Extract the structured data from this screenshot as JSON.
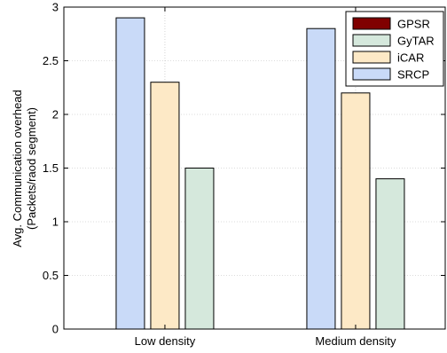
{
  "chart_data": {
    "type": "bar",
    "categories": [
      "Low density",
      "Medium density"
    ],
    "series": [
      {
        "name": "SRCP",
        "color": "#c9daf8",
        "values": [
          2.9,
          2.8
        ]
      },
      {
        "name": "iCAR",
        "color": "#fde9c6",
        "values": [
          2.3,
          2.2
        ]
      },
      {
        "name": "GyTAR",
        "color": "#d5e8dc",
        "values": [
          1.5,
          1.4
        ]
      },
      {
        "name": "GPSR",
        "color": "#800000",
        "values": [
          null,
          null
        ]
      }
    ],
    "legend_order": [
      "GPSR",
      "GyTAR",
      "iCAR",
      "SRCP"
    ],
    "title": "",
    "xlabel": "",
    "ylabel_lines": [
      "Avg. Communication overhead",
      "(Packets/raod segment)"
    ],
    "ylim": [
      0,
      3
    ],
    "yticks": [
      0,
      0.5,
      1,
      1.5,
      2,
      2.5,
      3
    ],
    "ytick_labels": [
      "0",
      "0.5",
      "1",
      "1.5",
      "2",
      "2.5",
      "3"
    ],
    "grid": true,
    "legend_position": "top-right"
  }
}
